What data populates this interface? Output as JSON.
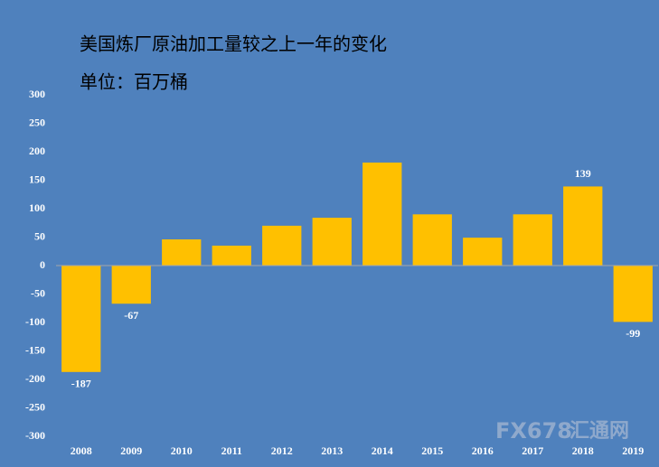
{
  "chart_data": {
    "type": "bar",
    "title": "美国炼厂原油加工量较之上一年的变化",
    "subtitle": "单位：百万桶",
    "categories": [
      "2008",
      "2009",
      "2010",
      "2011",
      "2012",
      "2013",
      "2014",
      "2015",
      "2016",
      "2017",
      "2018",
      "2019"
    ],
    "values": [
      -187,
      -67,
      46,
      35,
      70,
      84,
      181,
      90,
      49,
      90,
      139,
      -99
    ],
    "value_labels": [
      "-187",
      "-67",
      null,
      null,
      null,
      null,
      null,
      null,
      null,
      null,
      "139",
      "-99"
    ],
    "color": "#ffc000",
    "ylim": [
      -300,
      300
    ],
    "yticks": [
      -300,
      -250,
      -200,
      -150,
      -100,
      -50,
      0,
      50,
      100,
      150,
      200,
      250,
      300
    ],
    "grid": false,
    "watermark": [
      "FX678",
      "汇通网"
    ]
  }
}
